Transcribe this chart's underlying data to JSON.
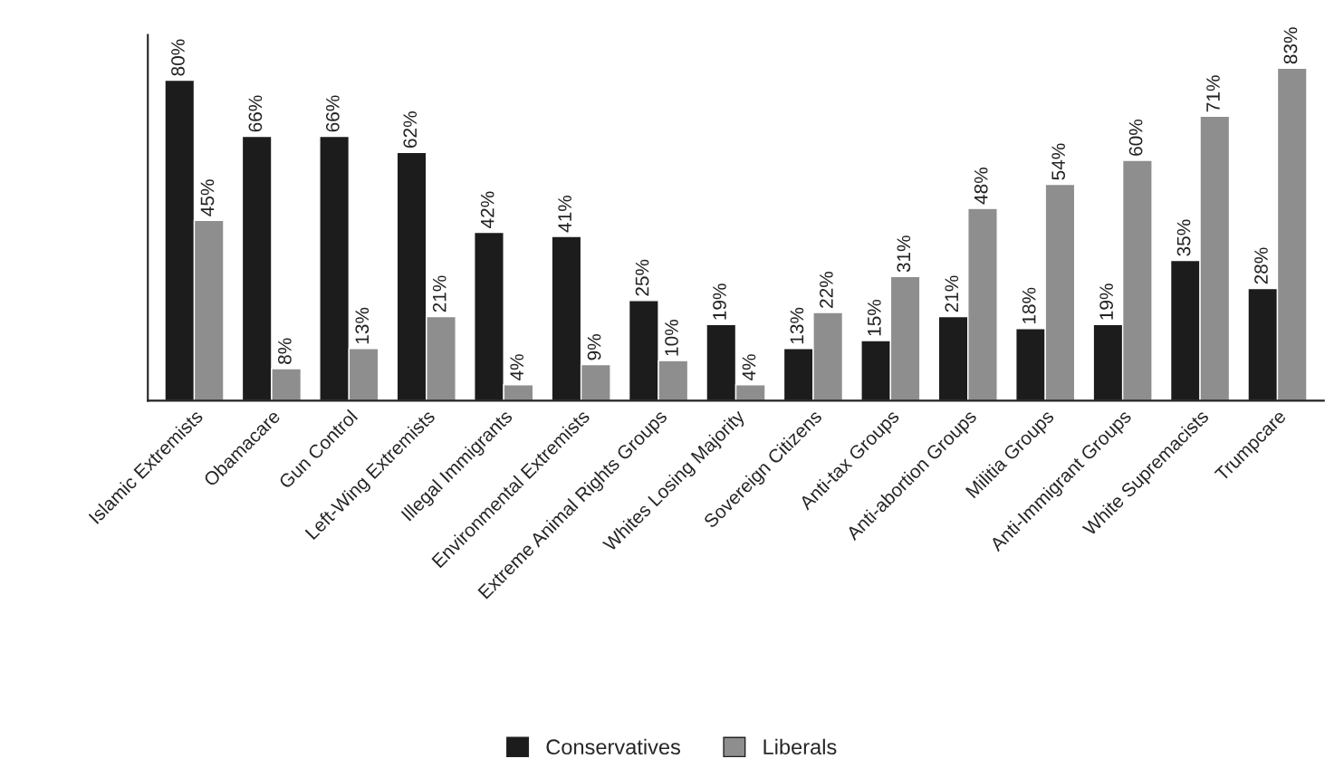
{
  "chart_data": {
    "type": "bar",
    "categories": [
      "Islamic Extremists",
      "Obamacare",
      "Gun Control",
      "Left-Wing Extremists",
      "Illegal Immigrants",
      "Environmental Extremists",
      "Extreme Animal Rights Groups",
      "Whites Losing Majority",
      "Sovereign Citizens",
      "Anti-tax Groups",
      "Anti-abortion Groups",
      "Militia Groups",
      "Anti-Immigrant Groups",
      "White Supremacists",
      "Trumpcare"
    ],
    "series": [
      {
        "name": "Conservatives",
        "color": "#1c1c1c",
        "values": [
          80,
          66,
          66,
          62,
          42,
          41,
          25,
          19,
          13,
          15,
          21,
          18,
          19,
          35,
          28
        ],
        "value_labels": [
          "80%",
          "66%",
          "66%",
          "62%",
          "42%",
          "41%",
          "25%",
          "19%",
          "13%",
          "15%",
          "21%",
          "18%",
          "19%",
          "35%",
          "28%"
        ]
      },
      {
        "name": "Liberals",
        "color": "#8e8e8e",
        "values": [
          45,
          8,
          13,
          21,
          4,
          9,
          10,
          4,
          22,
          31,
          48,
          54,
          60,
          71,
          83
        ],
        "value_labels": [
          "45%",
          "8%",
          "13%",
          "21%",
          "4%",
          "9%",
          "10%",
          "4%",
          "22%",
          "31%",
          "48%",
          "54%",
          "60%",
          "71%",
          "83%"
        ]
      }
    ],
    "grid": false,
    "legend": "bottom"
  }
}
